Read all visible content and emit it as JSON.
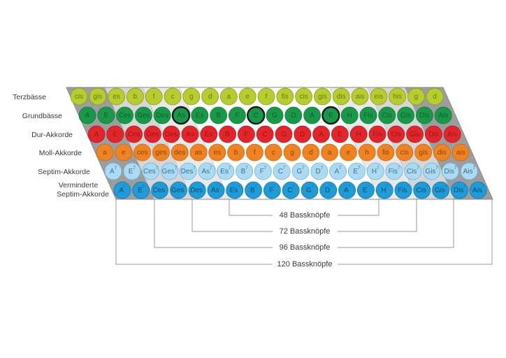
{
  "rows": [
    {
      "label": "Terzbässe",
      "fill": "#b6cd2f",
      "stroke": "#8a9c1c",
      "text": "#6b7a12",
      "suffix": "",
      "buttons": [
        "cis",
        "gis",
        "es",
        "b",
        "f",
        "c",
        "g",
        "d",
        "a",
        "e",
        "f",
        "fis",
        "cis",
        "gis",
        "dis",
        "ais",
        "eis",
        "his",
        "g",
        "d"
      ]
    },
    {
      "label": "Grundbässe",
      "fill": "#1a9849",
      "stroke": "#127a38",
      "text": "#0f5f2b",
      "suffix": "",
      "buttons": [
        "A",
        "E",
        "Ces",
        "Ges",
        "Des",
        "As",
        "Es",
        "B",
        "F",
        "C",
        "G",
        "D",
        "A",
        "E",
        "H",
        "Fis",
        "Cis",
        "Gis",
        "Dis",
        "Ais"
      ],
      "highlighted": [
        "As",
        "C",
        "E"
      ]
    },
    {
      "label": "Dur-Akkorde",
      "fill": "#e1262b",
      "stroke": "#b81b20",
      "text": "#9a1418",
      "suffix": "",
      "buttons": [
        "A",
        "E",
        "Ces",
        "Ges",
        "Des",
        "As",
        "Es",
        "B",
        "F",
        "C",
        "G",
        "D",
        "A",
        "E",
        "H",
        "Fis",
        "Cis",
        "Gis",
        "Dis",
        "Ais"
      ]
    },
    {
      "label": "Moll-Akkorde",
      "fill": "#ef8323",
      "stroke": "#c96814",
      "text": "#8a4608",
      "suffix": "",
      "buttons": [
        "a",
        "e",
        "ces",
        "ges",
        "des",
        "as",
        "es",
        "b",
        "f",
        "c",
        "g",
        "d",
        "a",
        "e",
        "h",
        "fis",
        "cis",
        "gis",
        "dis",
        "ais"
      ]
    },
    {
      "label": "Septim-Akkorde",
      "fill": "#acdaf3",
      "stroke": "#6fb3d8",
      "text": "#3d6f8c",
      "suffix": "7",
      "buttons": [
        "A",
        "E",
        "Ces",
        "Ges",
        "Des",
        "As",
        "Es",
        "B",
        "F",
        "C",
        "G",
        "D",
        "A",
        "E",
        "H",
        "Fis",
        "Cis",
        "Gis",
        "Dis",
        "Ais"
      ]
    },
    {
      "label": "Verminderte Septim-Akkorde",
      "label_lines": [
        "Verminderte",
        "Septim-Akkorde"
      ],
      "fill": "#1f9bd7",
      "stroke": "#1579ab",
      "text": "#0d4d70",
      "suffix": "°",
      "buttons": [
        "A",
        "E",
        "Ces",
        "Ges",
        "Des",
        "As",
        "Es",
        "B",
        "F",
        "C",
        "G",
        "D",
        "A",
        "E",
        "H",
        "Fis",
        "Cis",
        "Gis",
        "Dis",
        "Ais"
      ]
    }
  ],
  "bass_counts": [
    {
      "label": "48 Bassknöpfe"
    },
    {
      "label": "72 Bassknöpfe"
    },
    {
      "label": "96 Bassknöpfe"
    },
    {
      "label": "120 Bassknöpfe"
    }
  ],
  "colors": {
    "outer_band": "#9d9d9d",
    "band_2": "#d6d6d6",
    "band_3": "#e9e9e9",
    "center": "#ffffff",
    "bracket_line": "#9a9a9a"
  }
}
